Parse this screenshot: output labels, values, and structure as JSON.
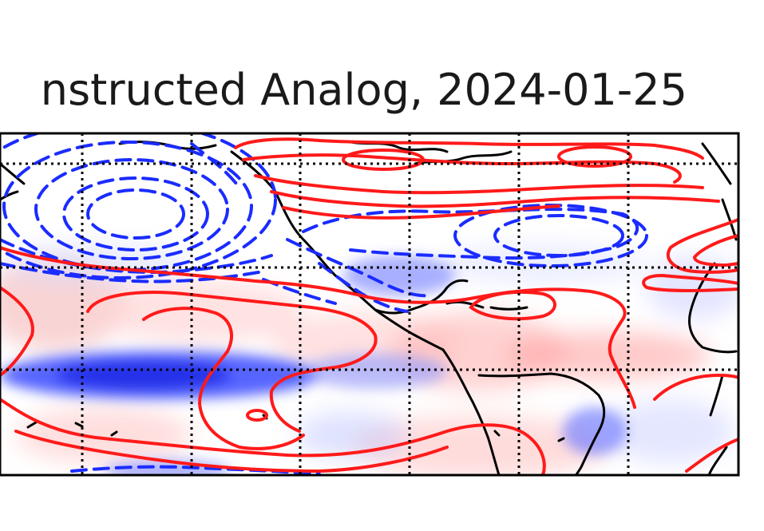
{
  "figure": {
    "title": "nstructed Analog, 2024-01-25"
  },
  "map": {
    "shading_colors": {
      "positive": "#ff9a9a",
      "negative": "#2a3cff",
      "neutral": "#ffffff"
    },
    "contour_colors": {
      "positive": "#ff1a1a",
      "negative": "#1a2cff"
    },
    "coastline_color": "#000000",
    "gridline_style": "dotted",
    "graticule": "dotted black grid lines"
  }
}
